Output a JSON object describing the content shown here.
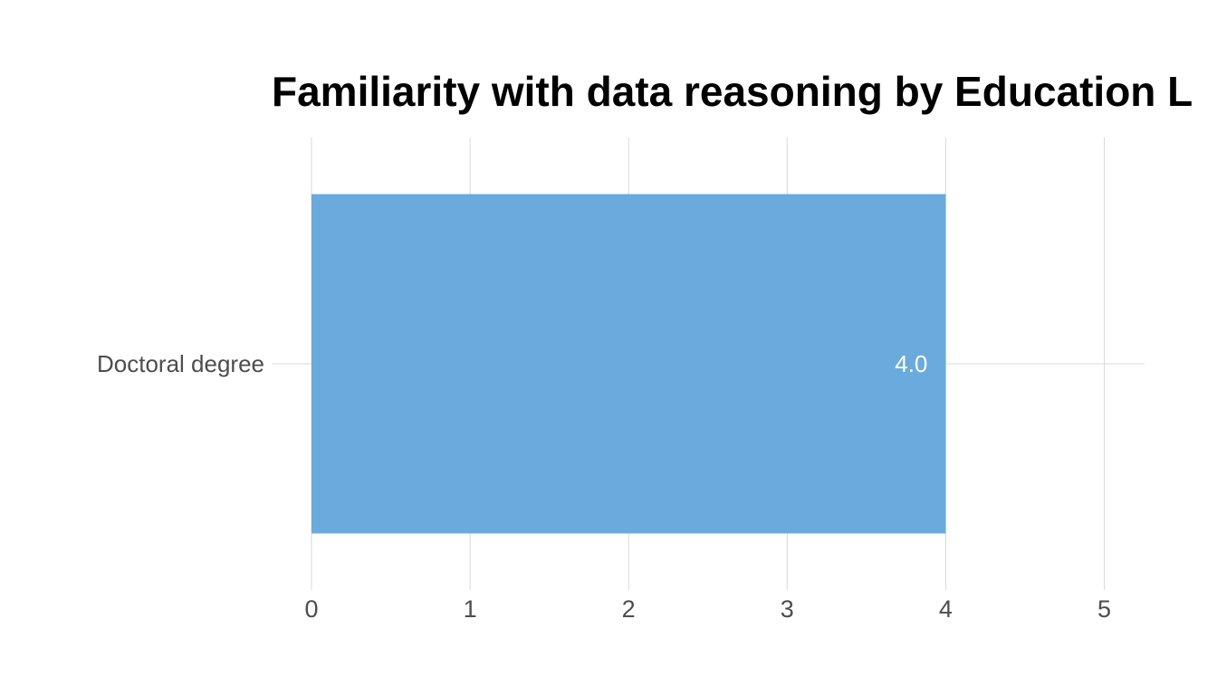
{
  "chart_data": {
    "type": "bar",
    "orientation": "horizontal",
    "title": "Familiarity with data reasoning by Education L",
    "categories": [
      "Doctoral degree"
    ],
    "values": [
      4.0
    ],
    "data_labels": [
      "4.0"
    ],
    "xlabel": "",
    "ylabel": "",
    "xlim": [
      0,
      5.25
    ],
    "xticks": [
      0,
      1,
      2,
      3,
      4,
      5
    ],
    "xtick_labels": [
      "0",
      "1",
      "2",
      "3",
      "4",
      "5"
    ],
    "grid": true,
    "legend": "none",
    "colors": {
      "bar": "#6aaadd",
      "data_label": "#ffffff",
      "grid": "#d9d9d9",
      "tick_text": "#4d4d4d",
      "title": "#000000",
      "background": "#ffffff"
    }
  }
}
